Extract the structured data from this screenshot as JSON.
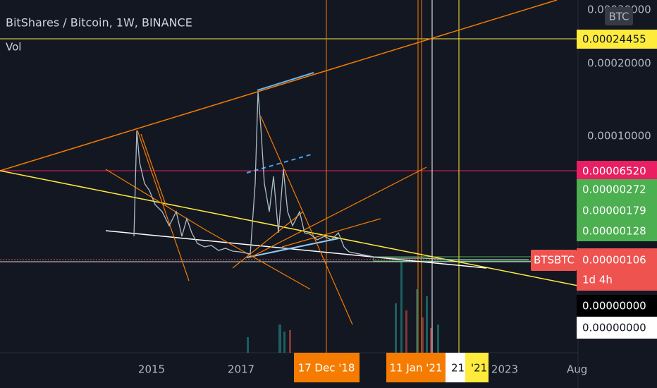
{
  "header": {
    "title": "BitShares / Bitcoin, 1W, BINANCE",
    "indicator": "Vol"
  },
  "price_axis": {
    "top": "0.00030000",
    "unit": "BTC",
    "yellow": "0.00024455",
    "mid": "0.00020000",
    "low": "0.00010000",
    "pink": "0.00006520",
    "green": [
      "0.00000272",
      "0.00000179",
      "0.00000128"
    ],
    "symbol": "BTSBTC",
    "last": "0.00000106",
    "countdown": "1d 4h",
    "black": "0.00000000",
    "white": "0.00000000"
  },
  "time_axis": [
    "2015",
    "2017",
    "17 Dec '18",
    "11 Jan '21",
    "21",
    "'21",
    "2023",
    "Aug"
  ]
}
